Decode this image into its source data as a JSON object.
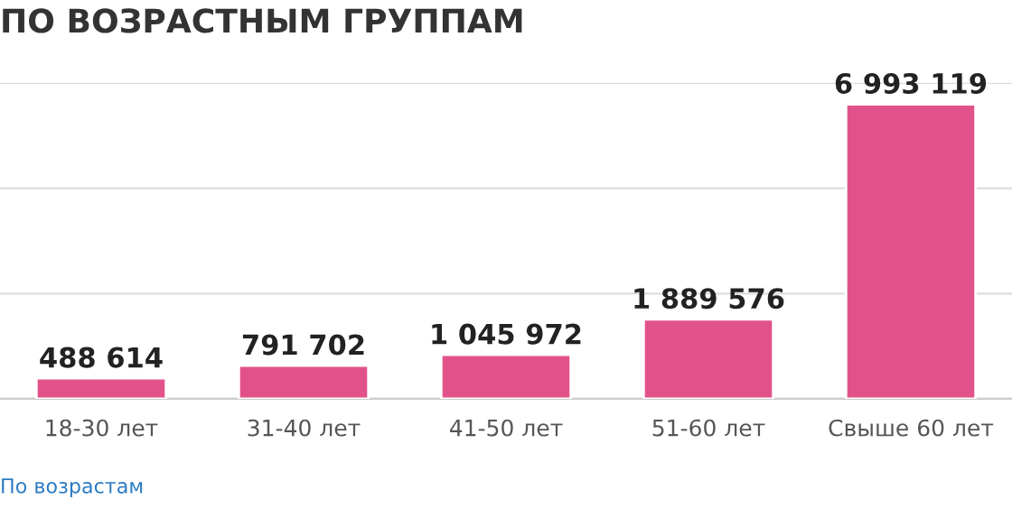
{
  "chart_data": {
    "type": "bar",
    "title": "ПО ВОЗРАСТНЫМ ГРУППАМ",
    "categories": [
      "18-30 лет",
      "31-40 лет",
      "41-50 лет",
      "51-60 лет",
      "Свыше 60 лет"
    ],
    "values": [
      488614,
      791702,
      1045972,
      1889576,
      6993119
    ],
    "value_labels": [
      "488 614",
      "791 702",
      "1 045 972",
      "1 889 576",
      "6 993 119"
    ],
    "color": "#e2528a",
    "ylim": [
      0,
      7500000
    ],
    "yticks": [
      {
        "value": 0,
        "label": null
      },
      {
        "value": 2500000,
        "label": null
      },
      {
        "value": 5000000,
        "label": null
      },
      {
        "value": 7500000,
        "label": null
      }
    ],
    "tick_labels": "x",
    "grid": "y",
    "annotations": [
      "По возрастам"
    ]
  }
}
